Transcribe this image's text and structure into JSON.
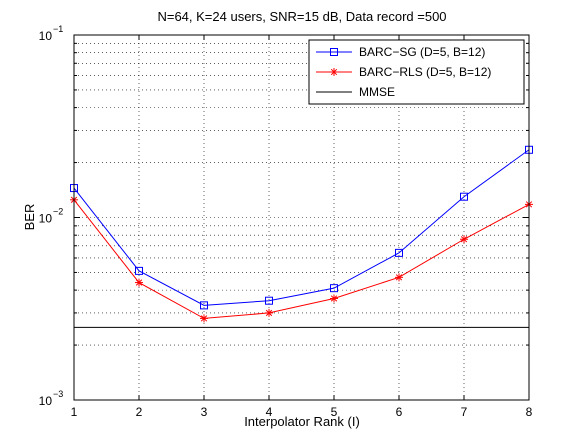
{
  "chart_data": {
    "type": "line",
    "title": "N=64, K=24 users, SNR=15 dB, Data record =500",
    "xlabel": "Interpolator Rank (I)",
    "ylabel": "BER",
    "x": [
      1,
      2,
      3,
      4,
      5,
      6,
      7,
      8
    ],
    "xlim": [
      1,
      8
    ],
    "ylim": [
      0.001,
      0.1
    ],
    "yscale": "log",
    "x_ticks": [
      "1",
      "2",
      "3",
      "4",
      "5",
      "6",
      "7",
      "8"
    ],
    "y_ticks": [
      {
        "value": 0.001,
        "base": "10",
        "exp": "−3"
      },
      {
        "value": 0.01,
        "base": "10",
        "exp": "−2"
      },
      {
        "value": 0.1,
        "base": "10",
        "exp": "−1"
      }
    ],
    "grid": true,
    "legend_position": "top-right",
    "series": [
      {
        "name": "BARC−SG (D=5, B=12)",
        "color": "#0000ff",
        "marker": "square",
        "values": [
          0.0145,
          0.0051,
          0.0033,
          0.0035,
          0.0041,
          0.0064,
          0.013,
          0.0235
        ]
      },
      {
        "name": "BARC−RLS (D=5, B=12)",
        "color": "#ff0000",
        "marker": "asterisk",
        "values": [
          0.0125,
          0.0044,
          0.0028,
          0.003,
          0.0036,
          0.0047,
          0.0076,
          0.0118
        ]
      },
      {
        "name": "MMSE",
        "color": "#000000",
        "marker": "none",
        "values": [
          0.0025,
          0.0025,
          0.0025,
          0.0025,
          0.0025,
          0.0025,
          0.0025,
          0.0025
        ]
      }
    ]
  }
}
